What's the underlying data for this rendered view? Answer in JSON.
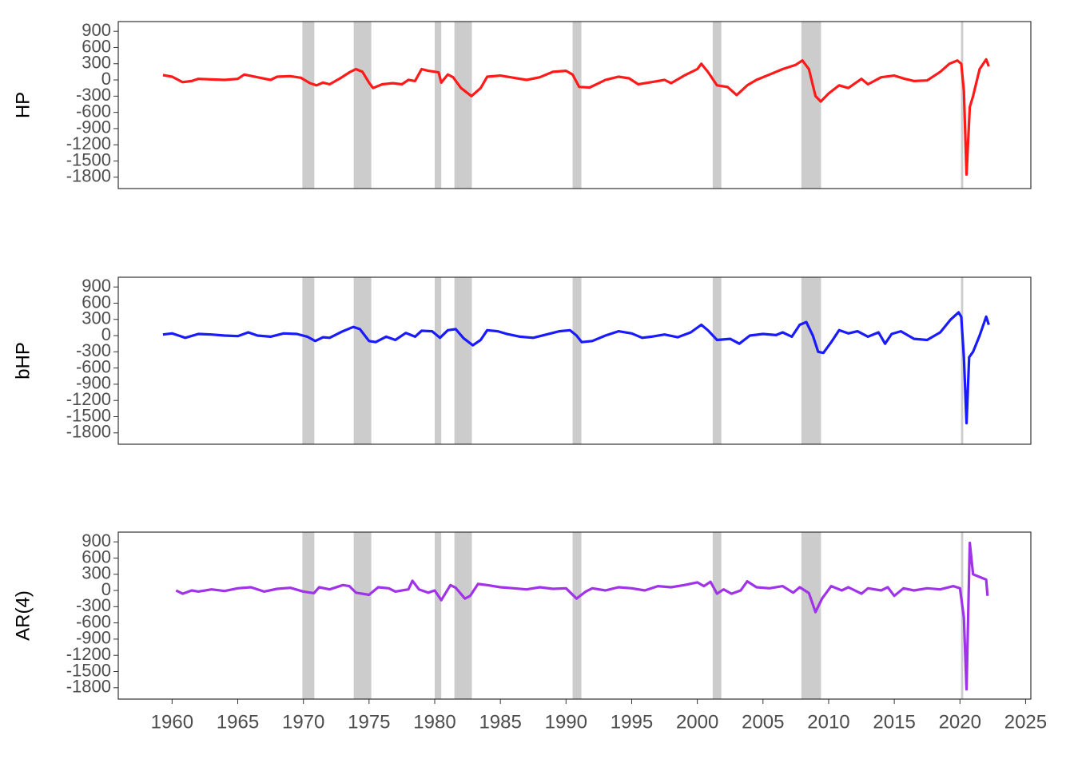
{
  "chart_data": [
    {
      "type": "line",
      "ylabel": "HP",
      "color": "#ff1a1a",
      "xlim": [
        1955.9,
        2025.4
      ],
      "ylim": [
        -2010,
        1080
      ],
      "yticks": [
        900,
        600,
        300,
        0,
        -300,
        -600,
        -900,
        -1200,
        -1500,
        -1800
      ],
      "recessions": [
        [
          1969.92,
          1970.83
        ],
        [
          1973.83,
          1975.17
        ],
        [
          1980.0,
          1980.5
        ],
        [
          1981.5,
          1982.83
        ],
        [
          1990.5,
          1991.17
        ],
        [
          2001.17,
          2001.83
        ],
        [
          2007.92,
          2009.42
        ],
        [
          2020.08,
          2020.25
        ]
      ],
      "x": [
        1959.3,
        1960,
        1960.8,
        1961.5,
        1962,
        1963,
        1964,
        1965,
        1965.5,
        1966.5,
        1967.5,
        1968,
        1969,
        1969.8,
        1970.5,
        1971,
        1971.5,
        1972,
        1972.8,
        1973.5,
        1974,
        1974.5,
        1975,
        1975.3,
        1976,
        1976.8,
        1977.5,
        1978,
        1978.5,
        1979,
        1979.5,
        1980.3,
        1980.5,
        1981,
        1981.4,
        1982,
        1982.8,
        1983.5,
        1984,
        1985,
        1986,
        1987,
        1988,
        1989,
        1990,
        1990.5,
        1991,
        1991.8,
        1992.5,
        1993,
        1994,
        1994.8,
        1995.5,
        1996.5,
        1997.5,
        1998,
        1999,
        2000,
        2000.3,
        2000.8,
        2001.5,
        2002.3,
        2003,
        2003.8,
        2004.5,
        2005.5,
        2006.5,
        2007.5,
        2008,
        2008.5,
        2009,
        2009.4,
        2010,
        2010.8,
        2011.5,
        2012.5,
        2013,
        2014,
        2015,
        2015.8,
        2016.5,
        2017.5,
        2018.5,
        2019.2,
        2019.8,
        2020.1,
        2020.3,
        2020.5,
        2020.75,
        2021,
        2021.5,
        2022,
        2022.2
      ],
      "values": [
        90,
        60,
        -40,
        -20,
        20,
        10,
        0,
        20,
        100,
        50,
        0,
        60,
        70,
        40,
        -60,
        -100,
        -50,
        -80,
        30,
        140,
        200,
        150,
        -50,
        -150,
        -80,
        -60,
        -80,
        0,
        -20,
        200,
        170,
        140,
        -50,
        100,
        50,
        -150,
        -300,
        -150,
        60,
        80,
        40,
        0,
        50,
        150,
        170,
        100,
        -130,
        -140,
        -60,
        0,
        60,
        30,
        -80,
        -40,
        0,
        -60,
        80,
        200,
        300,
        150,
        -100,
        -130,
        -280,
        -100,
        0,
        100,
        200,
        280,
        360,
        200,
        -300,
        -400,
        -250,
        -100,
        -150,
        20,
        -80,
        50,
        80,
        20,
        -20,
        -10,
        150,
        300,
        360,
        300,
        -200,
        -1750,
        -500,
        -300,
        200,
        380,
        250
      ]
    },
    {
      "type": "line",
      "ylabel": "bHP",
      "color": "#1a1aff",
      "xlim": [
        1955.9,
        2025.4
      ],
      "ylim": [
        -2010,
        1080
      ],
      "yticks": [
        900,
        600,
        300,
        0,
        -300,
        -600,
        -900,
        -1200,
        -1500,
        -1800
      ],
      "recessions": [
        [
          1969.92,
          1970.83
        ],
        [
          1973.83,
          1975.17
        ],
        [
          1980.0,
          1980.5
        ],
        [
          1981.5,
          1982.83
        ],
        [
          1990.5,
          1991.17
        ],
        [
          2001.17,
          2001.83
        ],
        [
          2007.92,
          2009.42
        ],
        [
          2020.08,
          2020.25
        ]
      ],
      "x": [
        1959.3,
        1960,
        1960.5,
        1961,
        1962,
        1963,
        1964,
        1965,
        1965.8,
        1966.5,
        1967.5,
        1968.5,
        1969.5,
        1970.3,
        1970.9,
        1971.5,
        1972,
        1973,
        1973.8,
        1974.3,
        1975,
        1975.5,
        1976.3,
        1977,
        1977.8,
        1978.5,
        1979,
        1979.8,
        1980.4,
        1981,
        1981.6,
        1982.2,
        1982.9,
        1983.5,
        1984,
        1984.8,
        1985.5,
        1986.5,
        1987.5,
        1988.5,
        1989.5,
        1990.3,
        1990.8,
        1991.2,
        1992,
        1993,
        1994,
        1995,
        1995.8,
        1996.5,
        1997.5,
        1998.5,
        1999.5,
        2000.3,
        2000.8,
        2001.5,
        2002.5,
        2003.2,
        2004,
        2005,
        2006,
        2006.5,
        2007.2,
        2007.8,
        2008.3,
        2008.8,
        2009.2,
        2009.6,
        2010.2,
        2010.8,
        2011.5,
        2012.2,
        2013,
        2013.8,
        2014.3,
        2014.8,
        2015.5,
        2016.5,
        2017.5,
        2018.5,
        2019.3,
        2019.9,
        2020.1,
        2020.3,
        2020.5,
        2020.7,
        2021,
        2021.5,
        2022,
        2022.2
      ],
      "values": [
        20,
        40,
        0,
        -40,
        30,
        20,
        0,
        -10,
        60,
        0,
        -20,
        40,
        30,
        -20,
        -100,
        -30,
        -40,
        80,
        160,
        120,
        -100,
        -120,
        -20,
        -80,
        50,
        -20,
        90,
        80,
        -40,
        100,
        120,
        -50,
        -180,
        -80,
        100,
        80,
        30,
        -20,
        -40,
        20,
        80,
        100,
        0,
        -120,
        -100,
        0,
        80,
        40,
        -40,
        -20,
        20,
        -30,
        60,
        200,
        100,
        -80,
        -60,
        -150,
        0,
        30,
        10,
        60,
        -20,
        200,
        250,
        0,
        -300,
        -320,
        -120,
        100,
        40,
        80,
        -20,
        60,
        -150,
        30,
        80,
        -60,
        -80,
        60,
        300,
        430,
        350,
        -400,
        -1620,
        -400,
        -300,
        0,
        350,
        200
      ]
    },
    {
      "type": "line",
      "ylabel": "AR(4)",
      "color": "#a033e8",
      "xlim": [
        1955.9,
        2025.4
      ],
      "ylim": [
        -2010,
        1080
      ],
      "yticks": [
        900,
        600,
        300,
        0,
        -300,
        -600,
        -900,
        -1200,
        -1500,
        -1800
      ],
      "xticks": [
        1960,
        1965,
        1970,
        1975,
        1980,
        1985,
        1990,
        1995,
        2000,
        2005,
        2010,
        2015,
        2020,
        2025
      ],
      "recessions": [
        [
          1969.92,
          1970.83
        ],
        [
          1973.83,
          1975.17
        ],
        [
          1980.0,
          1980.5
        ],
        [
          1981.5,
          1982.83
        ],
        [
          1990.5,
          1991.17
        ],
        [
          2001.17,
          2001.83
        ],
        [
          2007.92,
          2009.42
        ],
        [
          2020.08,
          2020.25
        ]
      ],
      "x": [
        1960.3,
        1960.8,
        1961.5,
        1962,
        1963,
        1964,
        1965,
        1966,
        1967,
        1968,
        1969,
        1970,
        1970.8,
        1971.2,
        1972,
        1973,
        1973.5,
        1974,
        1975,
        1975.7,
        1976.5,
        1977,
        1978,
        1978.3,
        1978.8,
        1979.5,
        1980,
        1980.5,
        1981.2,
        1981.6,
        1982.3,
        1982.7,
        1983.3,
        1984,
        1985,
        1986,
        1987,
        1988,
        1989,
        1990,
        1990.8,
        1991.5,
        1992,
        1993,
        1994,
        1995,
        1996,
        1997,
        1998,
        1999,
        2000,
        2000.5,
        2001,
        2001.5,
        2002,
        2002.6,
        2003.3,
        2003.8,
        2004.5,
        2005.5,
        2006.5,
        2007.3,
        2007.8,
        2008.5,
        2009,
        2009.5,
        2010.2,
        2011,
        2011.5,
        2012.5,
        2013,
        2014,
        2014.5,
        2015,
        2015.7,
        2016.5,
        2017.5,
        2018.5,
        2019.5,
        2020,
        2020.3,
        2020.5,
        2020.75,
        2021,
        2021.5,
        2022,
        2022.1
      ],
      "values": [
        0,
        -60,
        0,
        -20,
        20,
        -10,
        40,
        60,
        -20,
        30,
        50,
        -20,
        -50,
        60,
        20,
        100,
        80,
        -40,
        -80,
        60,
        40,
        -20,
        20,
        180,
        20,
        -40,
        0,
        -180,
        100,
        50,
        -150,
        -100,
        120,
        100,
        60,
        40,
        20,
        60,
        30,
        40,
        -150,
        -20,
        40,
        0,
        60,
        40,
        0,
        80,
        60,
        100,
        150,
        80,
        160,
        -60,
        20,
        -60,
        0,
        170,
        60,
        40,
        80,
        -40,
        60,
        -50,
        -400,
        -150,
        80,
        0,
        60,
        -60,
        40,
        0,
        60,
        -100,
        40,
        0,
        40,
        20,
        80,
        40,
        -500,
        -1830,
        880,
        300,
        250,
        200,
        -100
      ]
    }
  ]
}
